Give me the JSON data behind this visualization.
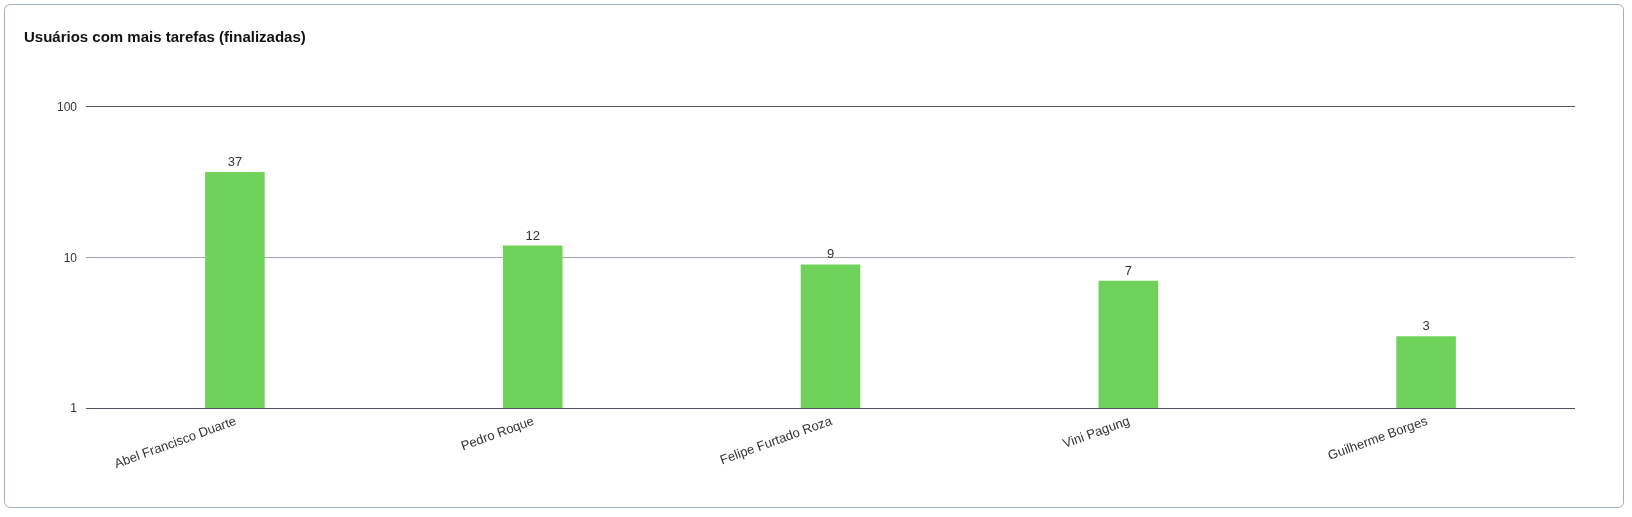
{
  "chart_data": {
    "type": "bar",
    "title": "Usuários com mais tarefas (finalizadas)",
    "categories": [
      "Abel Francisco Duarte",
      "Pedro Roque",
      "Felipe Furtado Roza",
      "Vini Pagung",
      "Guilherme Borges"
    ],
    "values": [
      37,
      12,
      9,
      7,
      3
    ],
    "color": "#6fd25a",
    "log": "y",
    "ylim": [
      1,
      100
    ],
    "yticks": [
      1,
      10,
      100
    ],
    "grid": "y",
    "data_labels": true
  }
}
